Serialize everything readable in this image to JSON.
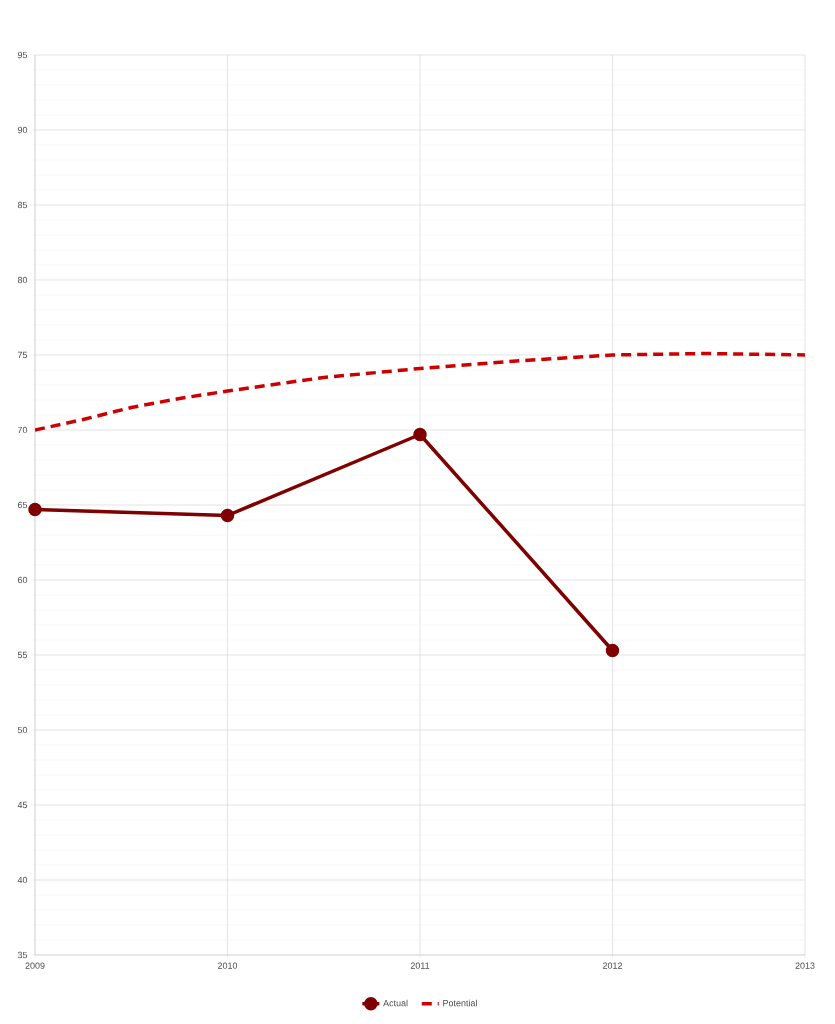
{
  "chart_data": {
    "type": "line",
    "xlim": [
      2009,
      2013
    ],
    "ylim": [
      35,
      95
    ],
    "xticks": [
      2009,
      2010,
      2011,
      2012,
      2013
    ],
    "yticks": [
      35,
      {
        "value": 36,
        "label": null
      },
      {
        "value": 37,
        "label": null
      },
      {
        "value": 38,
        "label": null
      },
      {
        "value": 39,
        "label": null
      },
      40,
      {
        "value": 41,
        "label": null
      },
      {
        "value": 42,
        "label": null
      },
      {
        "value": 43,
        "label": null
      },
      {
        "value": 44,
        "label": null
      },
      45,
      {
        "value": 46,
        "label": null
      },
      {
        "value": 47,
        "label": null
      },
      {
        "value": 48,
        "label": null
      },
      {
        "value": 49,
        "label": null
      },
      50,
      {
        "value": 51,
        "label": null
      },
      {
        "value": 52,
        "label": null
      },
      {
        "value": 53,
        "label": null
      },
      {
        "value": 54,
        "label": null
      },
      55,
      {
        "value": 56,
        "label": null
      },
      {
        "value": 57,
        "label": null
      },
      {
        "value": 58,
        "label": null
      },
      {
        "value": 59,
        "label": null
      },
      60,
      {
        "value": 61,
        "label": null
      },
      {
        "value": 62,
        "label": null
      },
      {
        "value": 63,
        "label": null
      },
      {
        "value": 64,
        "label": null
      },
      65,
      {
        "value": 66,
        "label": null
      },
      {
        "value": 67,
        "label": null
      },
      {
        "value": 68,
        "label": null
      },
      {
        "value": 69,
        "label": null
      },
      70,
      {
        "value": 71,
        "label": null
      },
      {
        "value": 72,
        "label": null
      },
      {
        "value": 73,
        "label": null
      },
      {
        "value": 74,
        "label": null
      },
      75,
      {
        "value": 76,
        "label": null
      },
      {
        "value": 77,
        "label": null
      },
      {
        "value": 78,
        "label": null
      },
      {
        "value": 79,
        "label": null
      },
      80,
      {
        "value": 81,
        "label": null
      },
      {
        "value": 82,
        "label": null
      },
      {
        "value": 83,
        "label": null
      },
      {
        "value": 84,
        "label": null
      },
      85,
      {
        "value": 86,
        "label": null
      },
      {
        "value": 87,
        "label": null
      },
      {
        "value": 88,
        "label": null
      },
      {
        "value": 89,
        "label": null
      },
      90,
      {
        "value": 91,
        "label": null
      },
      {
        "value": 92,
        "label": null
      },
      {
        "value": 93,
        "label": null
      },
      {
        "value": 94,
        "label": null
      },
      95
    ],
    "grid": true,
    "legend": "bottom",
    "series": [
      {
        "name": "Actual",
        "color": "#7f0000",
        "marker": "circle",
        "line_style": "solid",
        "x": [
          2009,
          2010,
          2011,
          2012
        ],
        "values": [
          64.7,
          64.3,
          69.7,
          55.3
        ]
      },
      {
        "name": "Potential",
        "color": "#cc0000",
        "marker": "none",
        "line_style": "dashed",
        "x": [
          2009,
          2009.25,
          2009.5,
          2009.75,
          2010,
          2010.5,
          2011,
          2011.5,
          2012,
          2012.5,
          2013
        ],
        "values": [
          70.0,
          70.7,
          71.5,
          72.1,
          72.6,
          73.5,
          74.1,
          74.6,
          75.0,
          75.1,
          75.0
        ]
      }
    ]
  }
}
